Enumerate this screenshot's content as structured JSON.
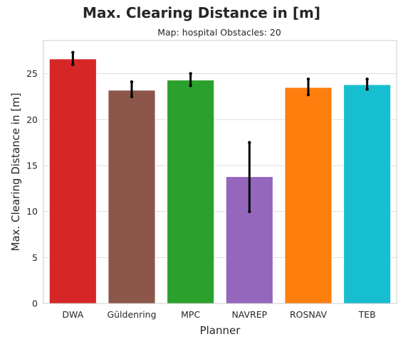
{
  "chart_data": {
    "type": "bar",
    "title": "Max. Clearing Distance in [m]",
    "subtitle": "Map: hospital Obstacles: 20",
    "xlabel": "Planner",
    "ylabel": "Max. Clearing Distance in [m]",
    "categories": [
      "DWA",
      "Güldenring",
      "MPC",
      "NAVREP",
      "ROSNAV",
      "TEB"
    ],
    "values": [
      26.6,
      23.2,
      24.3,
      13.8,
      23.5,
      23.8
    ],
    "error_low": [
      26.0,
      22.5,
      23.7,
      10.0,
      22.7,
      23.3
    ],
    "error_high": [
      27.3,
      24.1,
      25.0,
      17.5,
      24.4,
      24.4
    ],
    "colors": [
      "#d62728",
      "#8c564b",
      "#2ca02c",
      "#9467bd",
      "#ff7f0e",
      "#17becf"
    ],
    "error_color": "#000000",
    "ylim": [
      0,
      28.6
    ],
    "yticks": [
      0,
      5,
      10,
      15,
      20,
      25
    ],
    "grid": true
  }
}
